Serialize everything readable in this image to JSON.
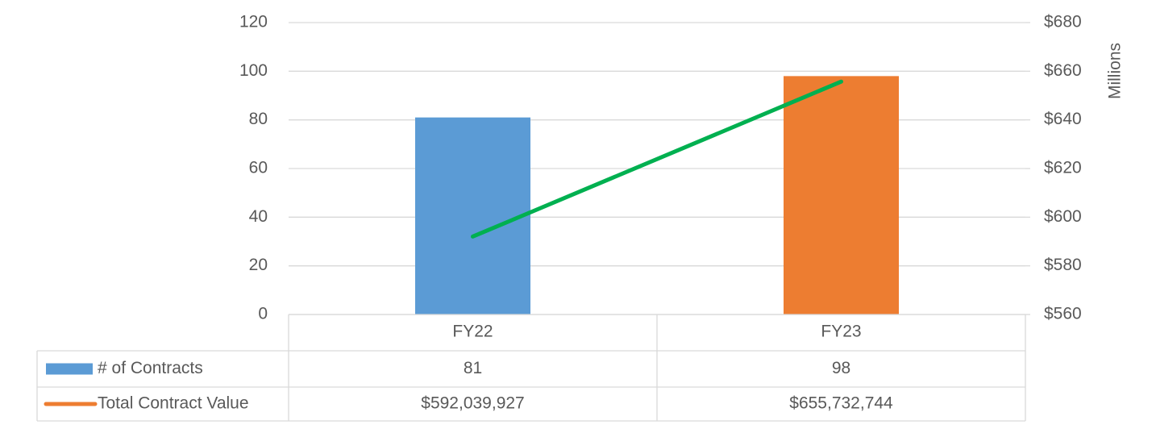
{
  "chart_data": {
    "type": "bar",
    "categories": [
      "FY22",
      "FY23"
    ],
    "series": [
      {
        "name": "# of Contracts",
        "color": "#5b9bd5",
        "point_colors": [
          "#5b9bd5",
          "#ed7d31"
        ],
        "values": [
          81,
          98
        ]
      },
      {
        "name": "Total Contract Value",
        "type": "line",
        "axis": "y2",
        "color": "#ed7d31",
        "line_color": "#00b050",
        "values": [
          592.039927,
          655.732744
        ],
        "value_labels": [
          "$592,039,927",
          "$655,732,744"
        ]
      }
    ],
    "ylim": [
      0,
      120
    ],
    "yticks": [
      0,
      20,
      40,
      60,
      80,
      100,
      120
    ],
    "y2lim": [
      560,
      680
    ],
    "y2ticks": [
      {
        "value": 560,
        "label": "$560"
      },
      {
        "value": 580,
        "label": "$580"
      },
      {
        "value": 600,
        "label": "$600"
      },
      {
        "value": 620,
        "label": "$620"
      },
      {
        "value": 640,
        "label": "$640"
      },
      {
        "value": 660,
        "label": "$660"
      },
      {
        "value": 680,
        "label": "$680"
      }
    ],
    "y2label": "Millions",
    "grid": true,
    "data_table": true
  }
}
